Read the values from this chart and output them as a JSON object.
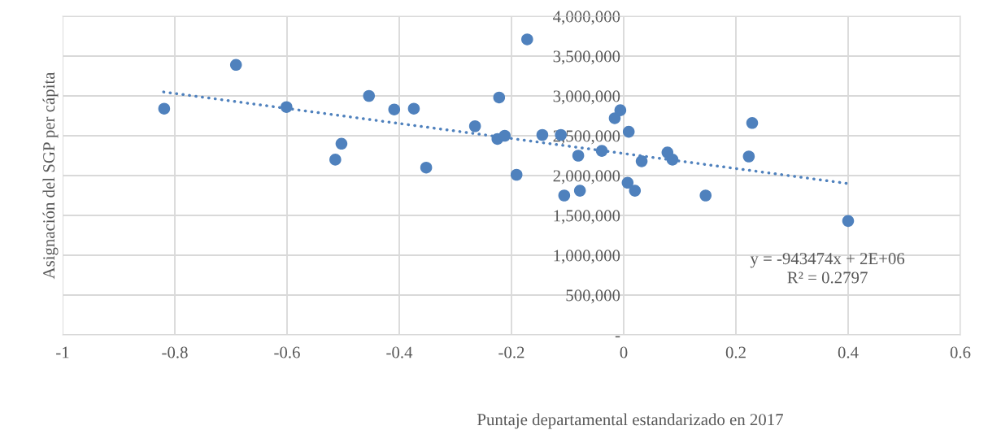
{
  "chart_data": {
    "type": "scatter",
    "xlabel": "Puntaje departamental estandarizado en 2017",
    "ylabel": "Asignación del SGP per cápita",
    "xlim": [
      -1,
      0.6
    ],
    "xticks": [
      -1,
      -0.8,
      -0.6,
      -0.4,
      -0.2,
      0,
      0.2,
      0.4,
      0.6
    ],
    "ylim": [
      0,
      4000000
    ],
    "yticks": [
      {
        "value": 0,
        "label": "-"
      },
      {
        "value": 500000,
        "label": "500,000"
      },
      {
        "value": 1000000,
        "label": "1,000,000"
      },
      {
        "value": 1500000,
        "label": "1,500,000"
      },
      {
        "value": 2000000,
        "label": "2,000,000"
      },
      {
        "value": 2500000,
        "label": "2,500,000"
      },
      {
        "value": 3000000,
        "label": "3,000,000"
      },
      {
        "value": 3500000,
        "label": "3,500,000"
      },
      {
        "value": 4000000,
        "label": "4,000,000"
      }
    ],
    "grid": true,
    "marker": "circle",
    "series": [
      {
        "color": "#4f81bd",
        "x": [
          -0.819,
          -0.691,
          -0.601,
          -0.514,
          -0.503,
          -0.454,
          -0.409,
          -0.374,
          -0.352,
          -0.265,
          -0.222,
          -0.225,
          -0.212,
          -0.172,
          -0.191,
          -0.145,
          -0.112,
          -0.106,
          -0.081,
          -0.078,
          -0.039,
          -0.016,
          -0.006,
          0.009,
          0.007,
          0.02,
          0.032,
          0.078,
          0.087,
          0.146,
          0.223,
          0.229,
          0.4
        ],
        "values": [
          2840000,
          3390000,
          2860000,
          2200000,
          2400000,
          3000000,
          2830000,
          2840000,
          2100000,
          2620000,
          2980000,
          2460000,
          2500000,
          3710000,
          2010000,
          2510000,
          2510000,
          1750000,
          2250000,
          1810000,
          2310000,
          2720000,
          2820000,
          2550000,
          1910000,
          1810000,
          2180000,
          2290000,
          2200000,
          1750000,
          2240000,
          2660000,
          1430000
        ]
      },
      {
        "type": "line",
        "color": "#4f81bd",
        "line_style": "dotted",
        "marker": "none",
        "x": [
          -0.82,
          0.4
        ],
        "values": [
          3050000,
          1900000
        ]
      }
    ],
    "annotations": [
      "y = -943474x + 2E+06\nR² = 0.2797"
    ]
  }
}
